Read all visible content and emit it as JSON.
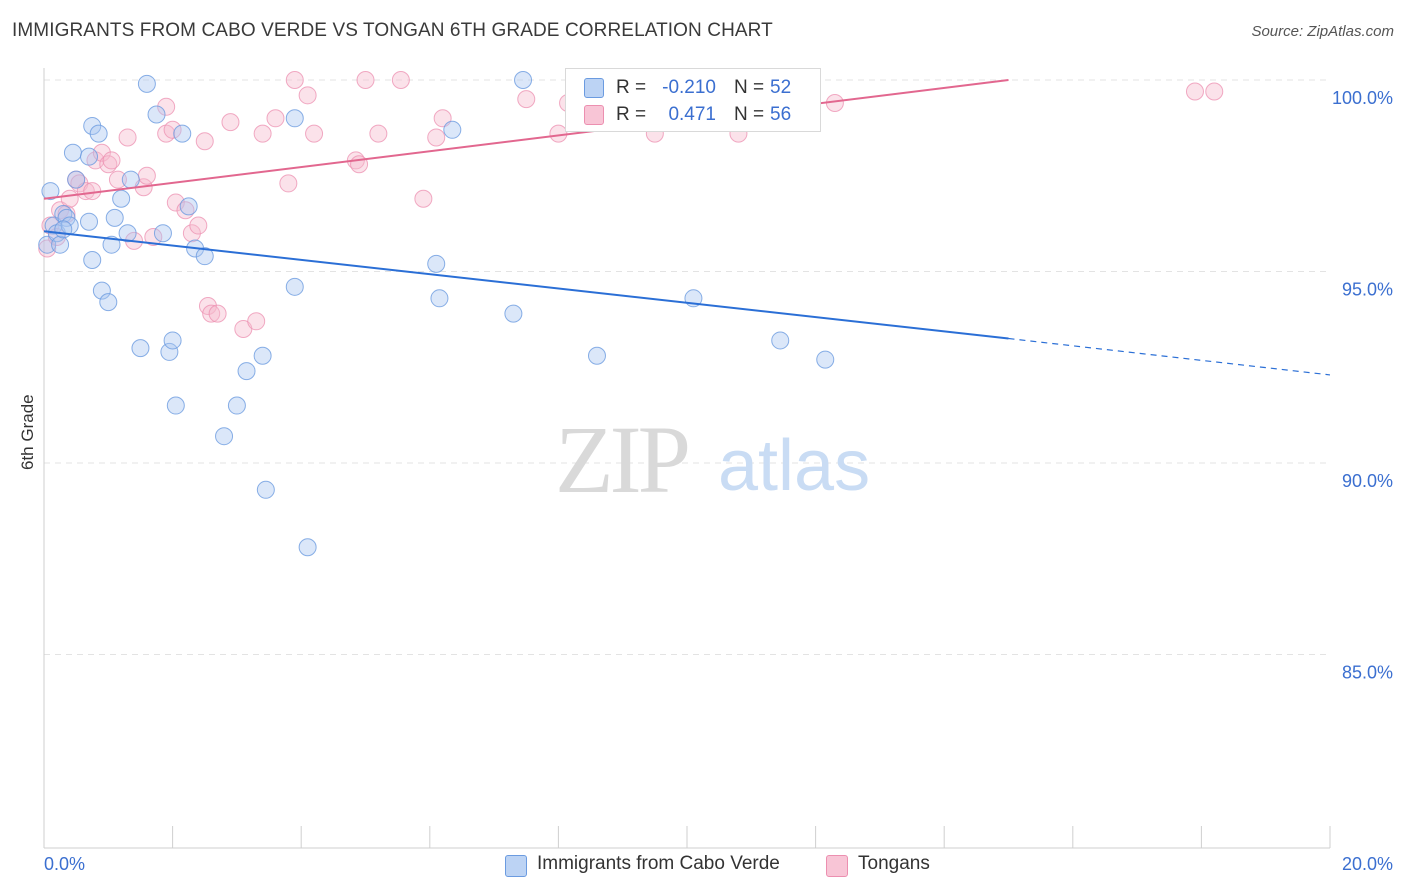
{
  "header": {
    "title": "IMMIGRANTS FROM CABO VERDE VS TONGAN 6TH GRADE CORRELATION CHART",
    "source": "Source: ZipAtlas.com"
  },
  "legend": {
    "rows": [
      {
        "r_label": "R =",
        "r_value": "-0.210",
        "n_label": "N =",
        "n_value": "52"
      },
      {
        "r_label": "R =",
        "r_value": "0.471",
        "n_label": "N =",
        "n_value": "56"
      }
    ]
  },
  "bottom_legend": {
    "series1": "Immigrants from Cabo Verde",
    "series2": "Tongans"
  },
  "watermark": {
    "zip": "ZIP",
    "atlas": "atlas"
  },
  "colors": {
    "blue_fill": "#a9c6f1",
    "blue_stroke": "#6b9be0",
    "blue_line": "#2b6fd6",
    "pink_fill": "#f6b9cd",
    "pink_stroke": "#ec8fb0",
    "pink_line": "#e2678f",
    "tick_text": "#3b6fd0",
    "grid": "#e3e3e3"
  },
  "chart_data": {
    "type": "scatter",
    "title": "IMMIGRANTS FROM CABO VERDE VS TONGAN 6TH GRADE CORRELATION CHART",
    "xlabel": "",
    "ylabel": "6th Grade",
    "xlim": [
      0,
      20
    ],
    "ylim": [
      80,
      100.7
    ],
    "x_ticks": [
      "0.0%",
      "20.0%"
    ],
    "y_ticks": [
      {
        "value": 100,
        "label": "100.0%"
      },
      {
        "value": 95,
        "label": "95.0%"
      },
      {
        "value": 90,
        "label": "90.0%"
      },
      {
        "value": 85,
        "label": "85.0%"
      }
    ],
    "grid": true,
    "legend_position": "top-center",
    "series": [
      {
        "name": "Immigrants from Cabo Verde",
        "r": -0.21,
        "n": 52,
        "trend": {
          "x0": 0.0,
          "y0": 96.05,
          "x1": 15.0,
          "y1": 93.25,
          "dashed_to_x": 20.0,
          "dashed_to_y": 92.3
        },
        "points": [
          [
            0.05,
            95.7
          ],
          [
            0.1,
            97.1
          ],
          [
            0.15,
            96.2
          ],
          [
            0.2,
            96.0
          ],
          [
            0.25,
            95.7
          ],
          [
            0.3,
            96.5
          ],
          [
            0.35,
            96.4
          ],
          [
            0.4,
            96.2
          ],
          [
            0.5,
            97.4
          ],
          [
            0.7,
            96.3
          ],
          [
            0.75,
            95.3
          ],
          [
            0.45,
            98.1
          ],
          [
            0.7,
            98.0
          ],
          [
            0.75,
            98.8
          ],
          [
            0.85,
            98.6
          ],
          [
            0.9,
            94.5
          ],
          [
            1.0,
            94.2
          ],
          [
            1.05,
            95.7
          ],
          [
            1.1,
            96.4
          ],
          [
            1.2,
            96.9
          ],
          [
            1.3,
            96.0
          ],
          [
            1.35,
            97.4
          ],
          [
            1.5,
            93.0
          ],
          [
            1.6,
            99.9
          ],
          [
            1.75,
            99.1
          ],
          [
            1.85,
            96.0
          ],
          [
            1.95,
            92.9
          ],
          [
            2.0,
            93.2
          ],
          [
            2.05,
            91.5
          ],
          [
            2.15,
            98.6
          ],
          [
            2.25,
            96.7
          ],
          [
            2.35,
            95.6
          ],
          [
            2.5,
            95.4
          ],
          [
            2.8,
            90.7
          ],
          [
            3.0,
            91.5
          ],
          [
            3.15,
            92.4
          ],
          [
            3.4,
            92.8
          ],
          [
            3.45,
            89.3
          ],
          [
            3.9,
            99.0
          ],
          [
            3.9,
            94.6
          ],
          [
            4.1,
            87.8
          ],
          [
            6.1,
            95.2
          ],
          [
            6.15,
            94.3
          ],
          [
            6.35,
            98.7
          ],
          [
            7.3,
            93.9
          ],
          [
            7.45,
            100.0
          ],
          [
            8.6,
            92.8
          ],
          [
            8.75,
            100.0
          ],
          [
            10.1,
            94.3
          ],
          [
            11.45,
            93.2
          ],
          [
            12.15,
            92.7
          ],
          [
            0.3,
            96.1
          ]
        ]
      },
      {
        "name": "Tongans",
        "r": 0.471,
        "n": 56,
        "trend": {
          "x0": 0.0,
          "y0": 96.9,
          "x1": 15.0,
          "y1": 100.0
        },
        "points": [
          [
            0.05,
            95.6
          ],
          [
            0.1,
            96.2
          ],
          [
            0.2,
            95.9
          ],
          [
            0.25,
            96.6
          ],
          [
            0.35,
            96.5
          ],
          [
            0.4,
            96.9
          ],
          [
            0.5,
            97.4
          ],
          [
            0.55,
            97.3
          ],
          [
            0.65,
            97.1
          ],
          [
            0.75,
            97.1
          ],
          [
            0.8,
            97.9
          ],
          [
            0.9,
            98.1
          ],
          [
            1.0,
            97.8
          ],
          [
            1.05,
            97.9
          ],
          [
            1.15,
            97.4
          ],
          [
            1.3,
            98.5
          ],
          [
            1.4,
            95.8
          ],
          [
            1.55,
            97.2
          ],
          [
            1.6,
            97.5
          ],
          [
            1.7,
            95.9
          ],
          [
            1.9,
            98.6
          ],
          [
            1.9,
            99.3
          ],
          [
            2.0,
            98.7
          ],
          [
            2.05,
            96.8
          ],
          [
            2.2,
            96.6
          ],
          [
            2.3,
            96.0
          ],
          [
            2.4,
            96.2
          ],
          [
            2.5,
            98.4
          ],
          [
            2.55,
            94.1
          ],
          [
            2.6,
            93.9
          ],
          [
            2.7,
            93.9
          ],
          [
            2.9,
            98.9
          ],
          [
            3.1,
            93.5
          ],
          [
            3.3,
            93.7
          ],
          [
            3.4,
            98.6
          ],
          [
            3.6,
            99.0
          ],
          [
            3.8,
            97.3
          ],
          [
            3.9,
            100.0
          ],
          [
            4.1,
            99.6
          ],
          [
            4.2,
            98.6
          ],
          [
            4.85,
            97.9
          ],
          [
            4.9,
            97.8
          ],
          [
            5.0,
            100.0
          ],
          [
            5.2,
            98.6
          ],
          [
            5.55,
            100.0
          ],
          [
            5.9,
            96.9
          ],
          [
            6.1,
            98.5
          ],
          [
            6.2,
            99.0
          ],
          [
            7.5,
            99.5
          ],
          [
            8.0,
            98.6
          ],
          [
            8.15,
            99.4
          ],
          [
            9.5,
            98.6
          ],
          [
            10.8,
            98.6
          ],
          [
            12.3,
            99.4
          ],
          [
            17.9,
            99.7
          ],
          [
            18.2,
            99.7
          ]
        ]
      }
    ]
  }
}
